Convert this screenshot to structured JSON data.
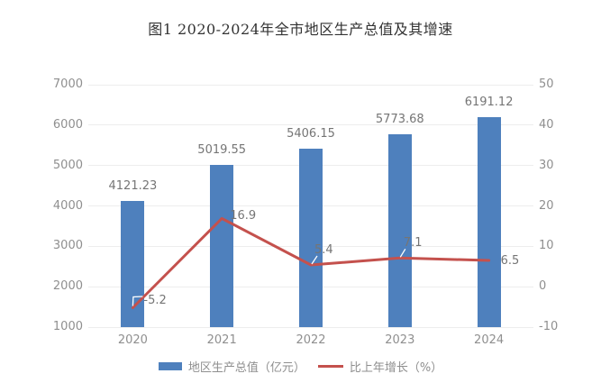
{
  "title": "图1 2020-2024年全市地区生产总值及其增速",
  "chart_data": {
    "type": "bar+line",
    "categories": [
      "2020",
      "2021",
      "2022",
      "2023",
      "2024"
    ],
    "series": [
      {
        "name": "地区生产总值（亿元）",
        "type": "bar",
        "axis": "left",
        "color": "#4E80BD",
        "values": [
          4121.23,
          5019.55,
          5406.15,
          5773.68,
          6191.12
        ],
        "labels": [
          "4121.23",
          "5019.55",
          "5406.15",
          "5773.68",
          "6191.12"
        ]
      },
      {
        "name": "比上年增长（%）",
        "type": "line",
        "axis": "right",
        "color": "#C4514D",
        "values": [
          -5.2,
          16.9,
          5.4,
          7.1,
          6.5
        ],
        "labels": [
          "-5.2",
          "16.9",
          "5.4",
          "7.1",
          "6.5"
        ]
      }
    ],
    "left_axis": {
      "min": 1000,
      "max": 7000,
      "ticks": [
        "7000",
        "6000",
        "5000",
        "4000",
        "3000",
        "2000",
        "1000"
      ]
    },
    "right_axis": {
      "min": -10,
      "max": 50,
      "ticks": [
        "50",
        "40",
        "30",
        "20",
        "10",
        "0",
        "-10"
      ]
    },
    "grid": true,
    "legend_position": "bottom",
    "title": "图1 2020-2024年全市地区生产总值及其增速"
  },
  "colors": {
    "bar": "#4E80BD",
    "line": "#C4514D",
    "grid": "#ededed",
    "tick_text": "#8f8f8f",
    "data_label_text": "#757575",
    "title_text": "#333333",
    "background": "#ffffff",
    "leader_line": "#ffffff"
  }
}
